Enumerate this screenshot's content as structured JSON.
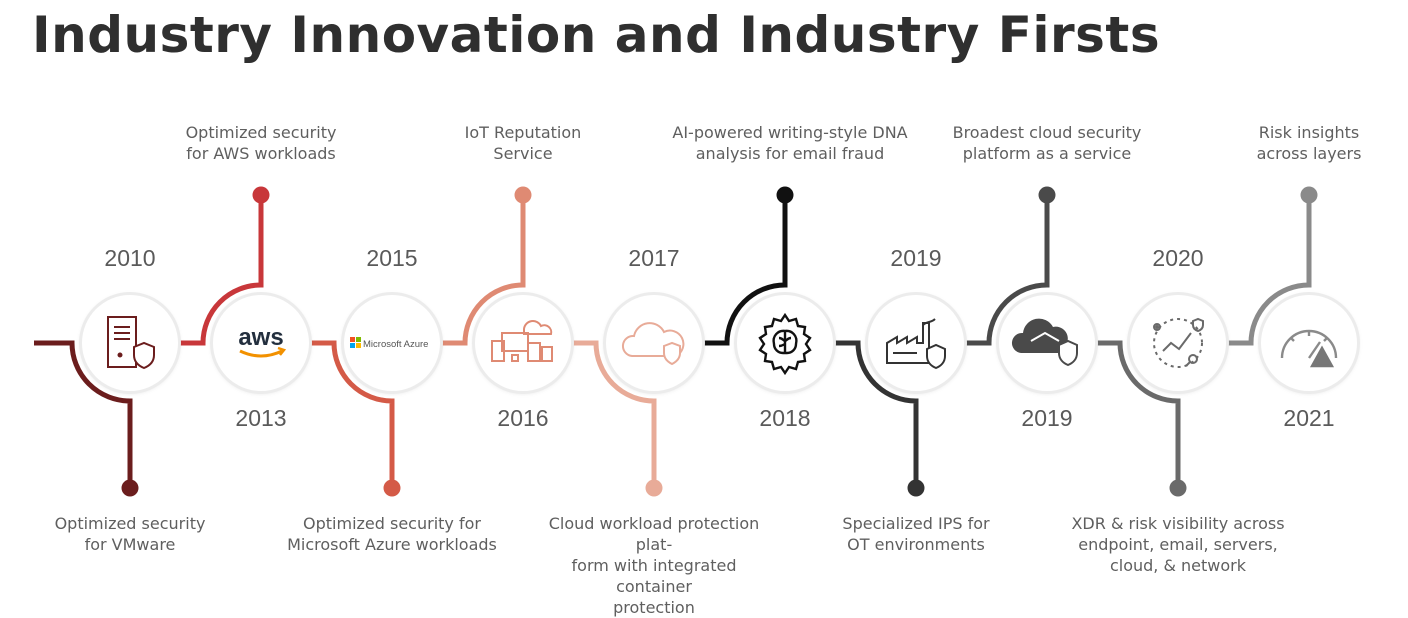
{
  "title": "Industry Innovation and Industry Firsts",
  "milestones": [
    {
      "year": "2010",
      "caption": [
        "Optimized security",
        "for VMware"
      ],
      "icon": "server-shield-icon",
      "color": "#6b1d1d"
    },
    {
      "year": "2013",
      "caption": [
        "Optimized security",
        "for AWS workloads"
      ],
      "icon": "aws-logo",
      "logo_text": "aws",
      "color": "#c8373a"
    },
    {
      "year": "2015",
      "caption": [
        "Optimized security for",
        "Microsoft Azure workloads"
      ],
      "icon": "microsoft-azure-logo",
      "logo_text": "Microsoft Azure",
      "color": "#d45a47"
    },
    {
      "year": "2016",
      "caption": [
        "IoT Reputation",
        "Service"
      ],
      "icon": "devices-cloud-icon",
      "color": "#df8a73"
    },
    {
      "year": "2017",
      "caption": [
        "Cloud workload protection plat-",
        "form with integrated container",
        "protection"
      ],
      "icon": "cloud-shield-icon",
      "color": "#e8ab98"
    },
    {
      "year": "2018",
      "caption": [
        "AI-powered writing-style DNA",
        "analysis for email fraud"
      ],
      "icon": "brain-gear-icon",
      "color": "#111111"
    },
    {
      "year": "2019",
      "caption": [
        "Specialized IPS for",
        "OT environments"
      ],
      "icon": "factory-shield-icon",
      "color": "#333333"
    },
    {
      "year": "2019",
      "caption": [
        "Broadest cloud security",
        "platform as a service"
      ],
      "icon": "cloud-platform-shield-icon",
      "color": "#4a4a4a"
    },
    {
      "year": "2020",
      "caption": [
        "XDR & risk visibility across",
        "endpoint, email, servers,",
        "cloud, & network"
      ],
      "icon": "xdr-network-icon",
      "color": "#6a6a6a"
    },
    {
      "year": "2021",
      "caption": [
        "Risk insights",
        "across layers"
      ],
      "icon": "risk-gauge-icon",
      "color": "#8a8a8a"
    }
  ]
}
